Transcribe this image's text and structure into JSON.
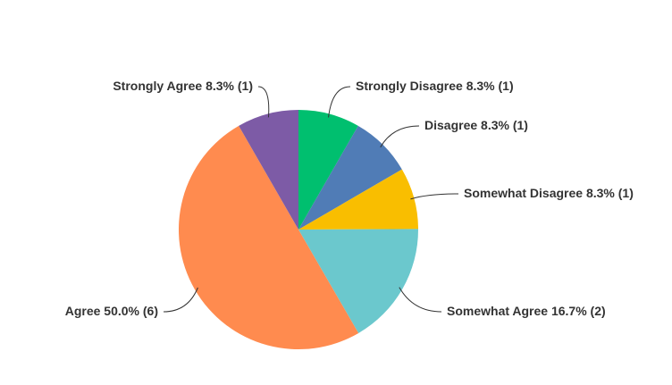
{
  "chart_data": {
    "type": "pie",
    "categories": [
      "Strongly Disagree",
      "Disagree",
      "Somewhat Disagree",
      "Somewhat Agree",
      "Agree",
      "Strongly Agree"
    ],
    "values": [
      8.3,
      8.3,
      8.3,
      16.7,
      50.0,
      8.3
    ],
    "value_labels": [
      "8.3% (1)",
      "8.3% (1)",
      "8.3% (1)",
      "16.7% (2)",
      "50.0% (6)",
      "8.3% (1)"
    ],
    "colors": [
      "#00bf6f",
      "#507cb6",
      "#f9be00",
      "#6bc8cd",
      "#ff8b4f",
      "#7d5ba6"
    ]
  }
}
